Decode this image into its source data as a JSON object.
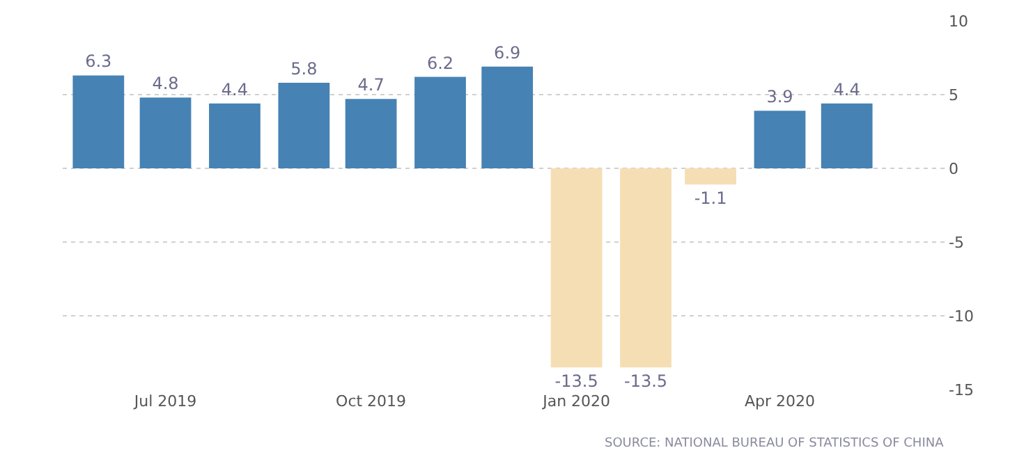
{
  "chart_data": {
    "type": "bar",
    "x": [
      "2019-06",
      "2019-07",
      "2019-08",
      "2019-09",
      "2019-10",
      "2019-11",
      "2019-12",
      "2020-01",
      "2020-02",
      "2020-03",
      "2020-04",
      "2020-05"
    ],
    "values": [
      6.3,
      4.8,
      4.4,
      5.8,
      4.7,
      6.2,
      6.9,
      -13.5,
      -13.5,
      -1.1,
      3.9,
      4.4
    ],
    "colors": [
      "#4682b4",
      "#4682b4",
      "#4682b4",
      "#4682b4",
      "#4682b4",
      "#4682b4",
      "#4682b4",
      "#f5deb3",
      "#f5deb3",
      "#f5deb3",
      "#4682b4",
      "#4682b4"
    ],
    "xlim": [
      "2019-05-16",
      "2020-06-15"
    ],
    "xticks": [
      {
        "value": "2019-07",
        "label": "Jul 2019"
      },
      {
        "value": "2019-10",
        "label": "Oct 2019"
      },
      {
        "value": "2020-01",
        "label": "Jan 2020"
      },
      {
        "value": "2020-04",
        "label": "Apr 2020"
      }
    ],
    "ylim": [
      -15,
      10
    ],
    "yticks": [
      -15,
      -10,
      -5,
      0,
      5,
      10
    ],
    "grid": "y",
    "data_labels": true,
    "legend": false,
    "annotations": [
      "SOURCE: NATIONAL BUREAU OF STATISTICS OF CHINA"
    ]
  }
}
